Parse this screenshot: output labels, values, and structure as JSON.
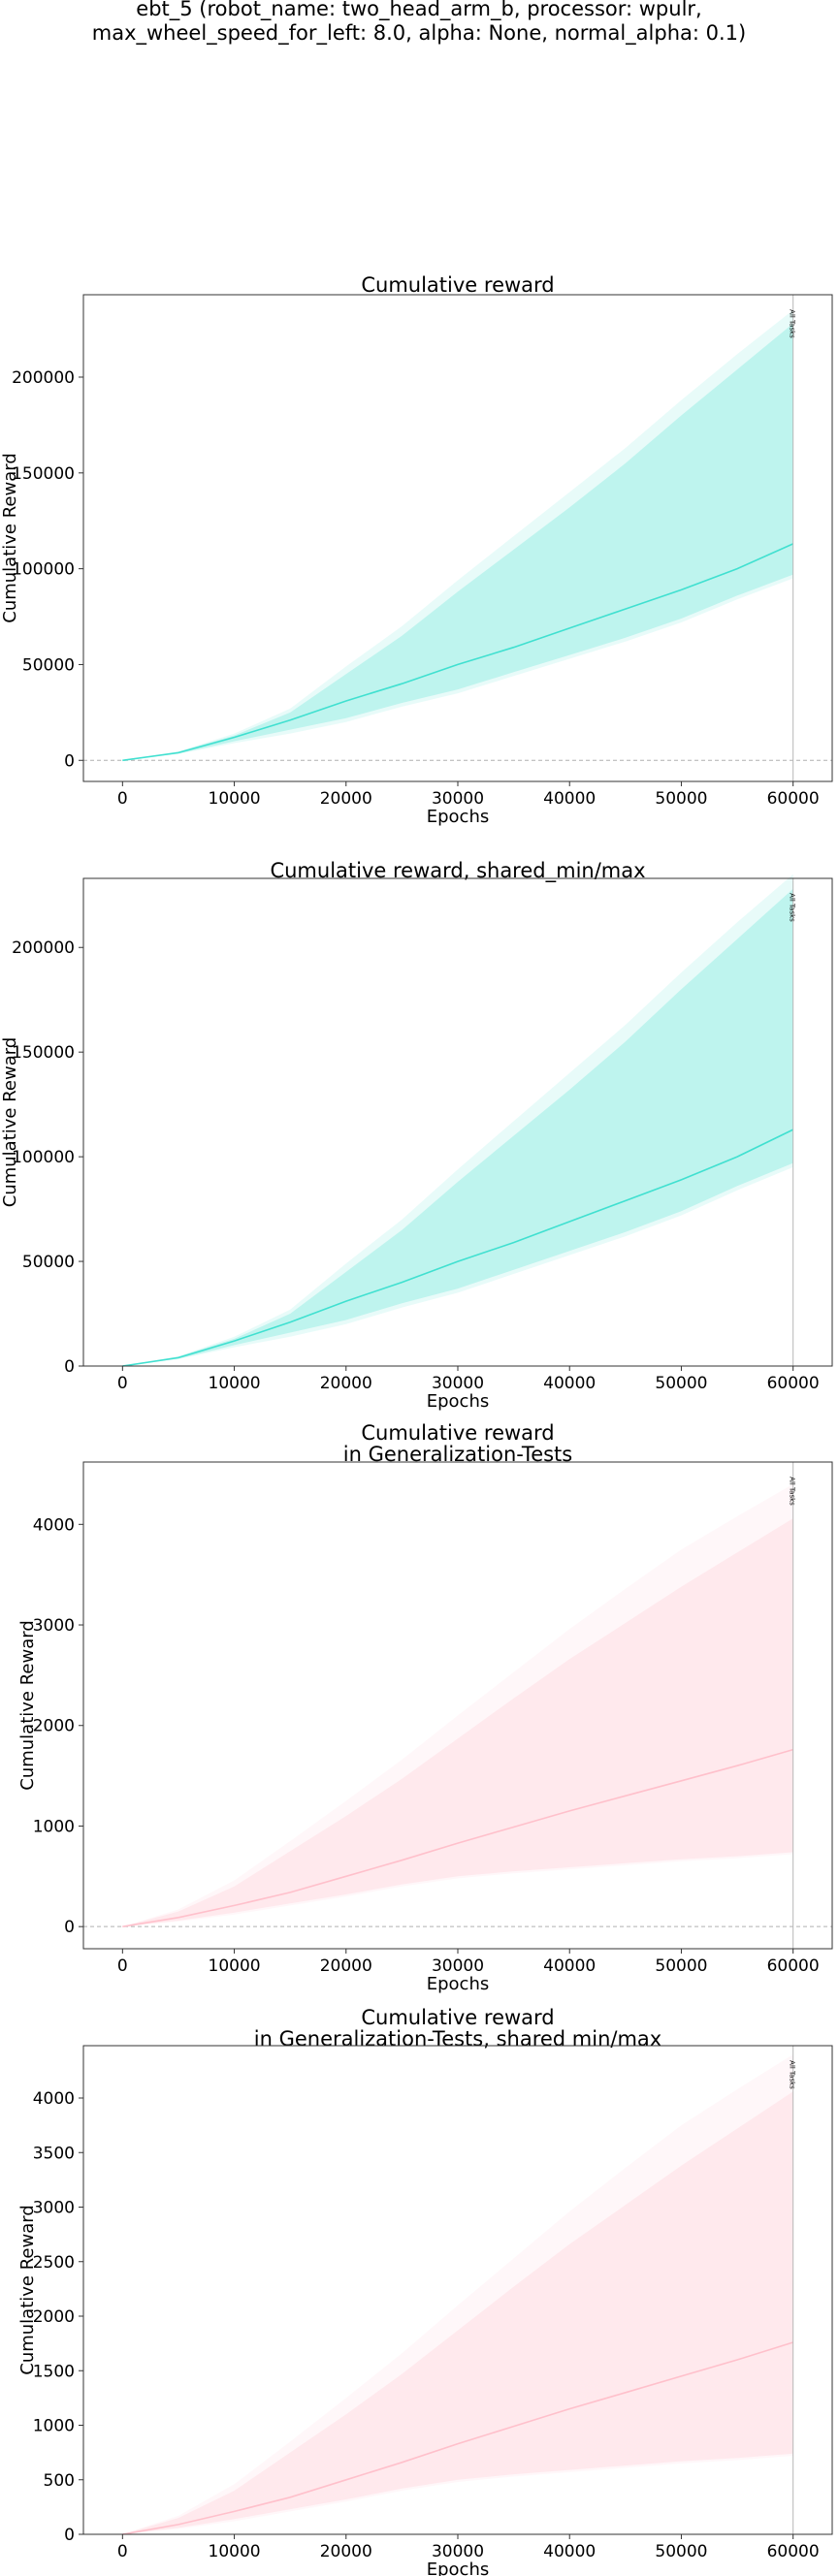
{
  "figure": {
    "suptitle_lines": [
      "ebt_5 (robot_name: two_head_arm_b, processor: wpulr,",
      "max_wheel_speed_for_left: 8.0, alpha: None, normal_alpha: 0.1)"
    ]
  },
  "chart_data": [
    {
      "type": "line",
      "title_lines": [
        "Cumulative reward"
      ],
      "xlabel": "Epochs",
      "ylabel": "Cumulative Reward",
      "xlim": [
        -3500,
        63500
      ],
      "ylim": [
        -11000,
        243000
      ],
      "xticks": [
        0,
        10000,
        20000,
        30000,
        40000,
        50000,
        60000
      ],
      "yticks": [
        0,
        50000,
        100000,
        150000,
        200000
      ],
      "zero_line": true,
      "color": "#40e0d0",
      "marker": {
        "x": 60000,
        "label": "All Tasks"
      },
      "series": [
        {
          "x": [
            0,
            5000,
            10000,
            15000,
            20000,
            25000,
            30000,
            35000,
            40000,
            45000,
            50000,
            55000,
            60000
          ],
          "mean": [
            0,
            4000,
            12000,
            21000,
            31000,
            40000,
            50000,
            59000,
            69000,
            79000,
            89000,
            100000,
            113000
          ],
          "min": [
            0,
            3500,
            10000,
            16000,
            22000,
            30000,
            37000,
            46000,
            55000,
            64000,
            74000,
            86000,
            97000
          ],
          "max": [
            0,
            4500,
            13000,
            25000,
            45000,
            65000,
            88000,
            110000,
            132000,
            155000,
            180000,
            204000,
            228000
          ],
          "outer_min": [
            0,
            3300,
            9000,
            14000,
            20000,
            28000,
            35000,
            44000,
            53000,
            62000,
            72000,
            84000,
            95000
          ],
          "outer_max": [
            0,
            4700,
            14000,
            27000,
            49000,
            70000,
            94000,
            117000,
            140000,
            163000,
            188000,
            212000,
            235000
          ]
        }
      ]
    },
    {
      "type": "line",
      "title_lines": [
        "Cumulative reward, shared_min/max"
      ],
      "xlabel": "Epochs",
      "ylabel": "Cumulative Reward",
      "xlim": [
        -3500,
        63500
      ],
      "ylim": [
        0,
        233000
      ],
      "xticks": [
        0,
        10000,
        20000,
        30000,
        40000,
        50000,
        60000
      ],
      "yticks": [
        0,
        50000,
        100000,
        150000,
        200000
      ],
      "zero_line": false,
      "color": "#40e0d0",
      "marker": {
        "x": 60000,
        "label": "All Tasks"
      },
      "series": [
        {
          "x": [
            0,
            5000,
            10000,
            15000,
            20000,
            25000,
            30000,
            35000,
            40000,
            45000,
            50000,
            55000,
            60000
          ],
          "mean": [
            0,
            4000,
            12000,
            21000,
            31000,
            40000,
            50000,
            59000,
            69000,
            79000,
            89000,
            100000,
            113000
          ],
          "min": [
            0,
            3500,
            10000,
            16000,
            22000,
            30000,
            37000,
            46000,
            55000,
            64000,
            74000,
            86000,
            97000
          ],
          "max": [
            0,
            4500,
            13000,
            25000,
            45000,
            65000,
            88000,
            110000,
            132000,
            155000,
            180000,
            204000,
            228000
          ],
          "outer_min": [
            0,
            3300,
            9000,
            14000,
            20000,
            28000,
            35000,
            44000,
            53000,
            62000,
            72000,
            84000,
            95000
          ],
          "outer_max": [
            0,
            4700,
            14000,
            27000,
            49000,
            70000,
            94000,
            117000,
            140000,
            163000,
            188000,
            212000,
            235000
          ]
        }
      ]
    },
    {
      "type": "line",
      "title_lines": [
        "Cumulative reward",
        "in Generalization-Tests"
      ],
      "xlabel": "Epochs",
      "ylabel": "Cumulative Reward",
      "xlim": [
        -3500,
        63500
      ],
      "ylim": [
        -220,
        4620
      ],
      "xticks": [
        0,
        10000,
        20000,
        30000,
        40000,
        50000,
        60000
      ],
      "yticks": [
        0,
        1000,
        2000,
        3000,
        4000
      ],
      "zero_line": true,
      "color": "#ffc0cb",
      "marker": {
        "x": 60000,
        "label": "All Tasks"
      },
      "series": [
        {
          "x": [
            0,
            5000,
            10000,
            15000,
            20000,
            25000,
            30000,
            35000,
            40000,
            45000,
            50000,
            55000,
            60000
          ],
          "mean": [
            0,
            90,
            210,
            340,
            500,
            660,
            830,
            990,
            1150,
            1300,
            1450,
            1600,
            1760
          ],
          "min": [
            0,
            60,
            140,
            230,
            320,
            420,
            500,
            550,
            590,
            630,
            670,
            700,
            740
          ],
          "max": [
            0,
            150,
            400,
            750,
            1100,
            1470,
            1870,
            2270,
            2660,
            3020,
            3380,
            3720,
            4060
          ],
          "outer_min": [
            0,
            50,
            120,
            210,
            300,
            400,
            480,
            530,
            570,
            610,
            650,
            680,
            720
          ],
          "outer_max": [
            0,
            170,
            460,
            850,
            1250,
            1660,
            2100,
            2530,
            2960,
            3360,
            3750,
            4080,
            4400
          ]
        }
      ]
    },
    {
      "type": "line",
      "title_lines": [
        "Cumulative reward",
        "in Generalization-Tests, shared min/max"
      ],
      "xlabel": "Epochs",
      "ylabel": "Cumulative Reward",
      "xlim": [
        -3500,
        63500
      ],
      "ylim": [
        0,
        4480
      ],
      "xticks": [
        0,
        10000,
        20000,
        30000,
        40000,
        50000,
        60000
      ],
      "yticks": [
        0,
        500,
        1000,
        1500,
        2000,
        2500,
        3000,
        3500,
        4000
      ],
      "zero_line": false,
      "color": "#ffc0cb",
      "marker": {
        "x": 60000,
        "label": "All Tasks"
      },
      "series": [
        {
          "x": [
            0,
            5000,
            10000,
            15000,
            20000,
            25000,
            30000,
            35000,
            40000,
            45000,
            50000,
            55000,
            60000
          ],
          "mean": [
            0,
            90,
            210,
            340,
            500,
            660,
            830,
            990,
            1150,
            1300,
            1450,
            1600,
            1760
          ],
          "min": [
            0,
            60,
            140,
            230,
            320,
            420,
            500,
            550,
            590,
            630,
            670,
            700,
            740
          ],
          "max": [
            0,
            150,
            400,
            750,
            1100,
            1470,
            1870,
            2270,
            2660,
            3020,
            3380,
            3720,
            4060
          ],
          "outer_min": [
            0,
            50,
            120,
            210,
            300,
            400,
            480,
            530,
            570,
            610,
            650,
            680,
            720
          ],
          "outer_max": [
            0,
            170,
            460,
            850,
            1250,
            1660,
            2100,
            2530,
            2960,
            3360,
            3750,
            4080,
            4400
          ]
        }
      ]
    }
  ]
}
